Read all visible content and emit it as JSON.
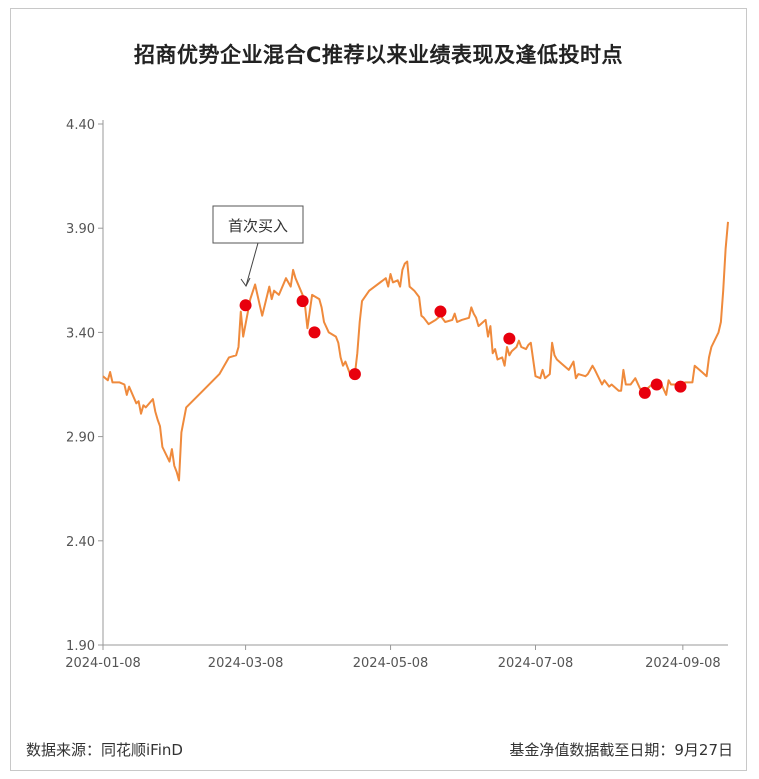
{
  "title": "招商优势企业混合C推荐以来业绩表现及逢低投时点",
  "footer": {
    "source": "数据来源：同花顺iFinD",
    "cutoff": "基金净值数据截至日期：9月27日"
  },
  "colors": {
    "line": "#ef8a3c",
    "marker": "#e8000d",
    "axis": "#999999",
    "text": "#555555"
  },
  "chart_data": {
    "type": "line",
    "title": "招商优势企业混合C推荐以来业绩表现及逢低投时点",
    "xlabel": "",
    "ylabel": "",
    "ylim": [
      1.9,
      4.4
    ],
    "y_ticks": [
      "1.90",
      "2.40",
      "2.90",
      "3.40",
      "3.90",
      "4.40"
    ],
    "x_ticks": [
      "2024-01-08",
      "2024-03-08",
      "2024-05-08",
      "2024-07-08",
      "2024-09-08"
    ],
    "x_start": "2024-01-08",
    "x_end": "2024-09-27",
    "grid": false,
    "series": [
      {
        "points": [
          [
            "2024-01-08",
            3.19
          ],
          [
            "2024-01-10",
            3.17
          ],
          [
            "2024-01-11",
            3.21
          ],
          [
            "2024-01-12",
            3.16
          ],
          [
            "2024-01-15",
            3.16
          ],
          [
            "2024-01-17",
            3.15
          ],
          [
            "2024-01-18",
            3.1
          ],
          [
            "2024-01-19",
            3.14
          ],
          [
            "2024-01-22",
            3.06
          ],
          [
            "2024-01-23",
            3.07
          ],
          [
            "2024-01-24",
            3.01
          ],
          [
            "2024-01-25",
            3.05
          ],
          [
            "2024-01-26",
            3.04
          ],
          [
            "2024-01-29",
            3.08
          ],
          [
            "2024-01-30",
            3.02
          ],
          [
            "2024-01-31",
            2.98
          ],
          [
            "2024-02-01",
            2.95
          ],
          [
            "2024-02-02",
            2.85
          ],
          [
            "2024-02-05",
            2.78
          ],
          [
            "2024-02-06",
            2.84
          ],
          [
            "2024-02-07",
            2.76
          ],
          [
            "2024-02-08",
            2.73
          ],
          [
            "2024-02-09",
            2.69
          ],
          [
            "2024-02-10",
            2.92
          ],
          [
            "2024-02-12",
            3.04
          ],
          [
            "2024-02-19",
            3.12
          ],
          [
            "2024-02-26",
            3.2
          ],
          [
            "2024-03-01",
            3.28
          ],
          [
            "2024-03-04",
            3.29
          ],
          [
            "2024-03-05",
            3.33
          ],
          [
            "2024-03-06",
            3.5
          ],
          [
            "2024-03-07",
            3.38
          ],
          [
            "2024-03-10",
            3.56
          ],
          [
            "2024-03-12",
            3.63
          ],
          [
            "2024-03-14",
            3.53
          ],
          [
            "2024-03-15",
            3.48
          ],
          [
            "2024-03-18",
            3.62
          ],
          [
            "2024-03-19",
            3.56
          ],
          [
            "2024-03-20",
            3.6
          ],
          [
            "2024-03-22",
            3.58
          ],
          [
            "2024-03-25",
            3.66
          ],
          [
            "2024-03-27",
            3.62
          ],
          [
            "2024-03-28",
            3.7
          ],
          [
            "2024-03-29",
            3.66
          ],
          [
            "2024-04-01",
            3.58
          ],
          [
            "2024-04-02",
            3.53
          ],
          [
            "2024-04-03",
            3.42
          ],
          [
            "2024-04-05",
            3.58
          ],
          [
            "2024-04-08",
            3.56
          ],
          [
            "2024-04-09",
            3.52
          ],
          [
            "2024-04-10",
            3.45
          ],
          [
            "2024-04-12",
            3.4
          ],
          [
            "2024-04-15",
            3.38
          ],
          [
            "2024-04-16",
            3.35
          ],
          [
            "2024-04-17",
            3.28
          ],
          [
            "2024-04-18",
            3.24
          ],
          [
            "2024-04-19",
            3.26
          ],
          [
            "2024-04-21",
            3.2
          ],
          [
            "2024-04-23",
            3.2
          ],
          [
            "2024-04-24",
            3.3
          ],
          [
            "2024-04-25",
            3.45
          ],
          [
            "2024-04-26",
            3.55
          ],
          [
            "2024-04-29",
            3.6
          ],
          [
            "2024-05-06",
            3.66
          ],
          [
            "2024-05-07",
            3.62
          ],
          [
            "2024-05-08",
            3.68
          ],
          [
            "2024-05-09",
            3.64
          ],
          [
            "2024-05-11",
            3.65
          ],
          [
            "2024-05-12",
            3.62
          ],
          [
            "2024-05-13",
            3.7
          ],
          [
            "2024-05-14",
            3.73
          ],
          [
            "2024-05-15",
            3.74
          ],
          [
            "2024-05-16",
            3.62
          ],
          [
            "2024-05-17",
            3.61
          ],
          [
            "2024-05-18",
            3.6
          ],
          [
            "2024-05-20",
            3.57
          ],
          [
            "2024-05-21",
            3.48
          ],
          [
            "2024-05-22",
            3.47
          ],
          [
            "2024-05-24",
            3.44
          ],
          [
            "2024-05-27",
            3.46
          ],
          [
            "2024-05-29",
            3.48
          ],
          [
            "2024-05-31",
            3.45
          ],
          [
            "2024-06-03",
            3.46
          ],
          [
            "2024-06-04",
            3.49
          ],
          [
            "2024-06-05",
            3.45
          ],
          [
            "2024-06-07",
            3.46
          ],
          [
            "2024-06-10",
            3.47
          ],
          [
            "2024-06-11",
            3.52
          ],
          [
            "2024-06-12",
            3.49
          ],
          [
            "2024-06-13",
            3.47
          ],
          [
            "2024-06-14",
            3.43
          ],
          [
            "2024-06-17",
            3.46
          ],
          [
            "2024-06-18",
            3.38
          ],
          [
            "2024-06-19",
            3.43
          ],
          [
            "2024-06-20",
            3.3
          ],
          [
            "2024-06-21",
            3.32
          ],
          [
            "2024-06-22",
            3.27
          ],
          [
            "2024-06-24",
            3.28
          ],
          [
            "2024-06-25",
            3.24
          ],
          [
            "2024-06-26",
            3.33
          ],
          [
            "2024-06-27",
            3.29
          ],
          [
            "2024-06-28",
            3.31
          ],
          [
            "2024-06-30",
            3.33
          ],
          [
            "2024-07-01",
            3.36
          ],
          [
            "2024-07-02",
            3.33
          ],
          [
            "2024-07-04",
            3.32
          ],
          [
            "2024-07-05",
            3.34
          ],
          [
            "2024-07-06",
            3.35
          ],
          [
            "2024-07-08",
            3.19
          ],
          [
            "2024-07-10",
            3.18
          ],
          [
            "2024-07-11",
            3.22
          ],
          [
            "2024-07-12",
            3.18
          ],
          [
            "2024-07-14",
            3.2
          ],
          [
            "2024-07-15",
            3.35
          ],
          [
            "2024-07-16",
            3.29
          ],
          [
            "2024-07-17",
            3.27
          ],
          [
            "2024-07-19",
            3.25
          ],
          [
            "2024-07-22",
            3.22
          ],
          [
            "2024-07-24",
            3.26
          ],
          [
            "2024-07-25",
            3.18
          ],
          [
            "2024-07-26",
            3.2
          ],
          [
            "2024-07-29",
            3.19
          ],
          [
            "2024-07-30",
            3.2
          ],
          [
            "2024-08-01",
            3.24
          ],
          [
            "2024-08-02",
            3.22
          ],
          [
            "2024-08-05",
            3.15
          ],
          [
            "2024-08-06",
            3.17
          ],
          [
            "2024-08-08",
            3.14
          ],
          [
            "2024-08-09",
            3.15
          ],
          [
            "2024-08-12",
            3.12
          ],
          [
            "2024-08-13",
            3.12
          ],
          [
            "2024-08-14",
            3.22
          ],
          [
            "2024-08-15",
            3.15
          ],
          [
            "2024-08-17",
            3.15
          ],
          [
            "2024-08-19",
            3.18
          ],
          [
            "2024-08-21",
            3.13
          ],
          [
            "2024-08-23",
            3.12
          ],
          [
            "2024-08-26",
            3.15
          ],
          [
            "2024-08-28",
            3.16
          ],
          [
            "2024-08-30",
            3.15
          ],
          [
            "2024-09-01",
            3.1
          ],
          [
            "2024-09-02",
            3.17
          ],
          [
            "2024-09-03",
            3.15
          ],
          [
            "2024-09-06",
            3.15
          ],
          [
            "2024-09-09",
            3.16
          ],
          [
            "2024-09-12",
            3.16
          ],
          [
            "2024-09-13",
            3.24
          ],
          [
            "2024-09-16",
            3.21
          ],
          [
            "2024-09-18",
            3.19
          ],
          [
            "2024-09-19",
            3.28
          ],
          [
            "2024-09-20",
            3.33
          ],
          [
            "2024-09-23",
            3.4
          ],
          [
            "2024-09-24",
            3.45
          ],
          [
            "2024-09-25",
            3.6
          ],
          [
            "2024-09-26",
            3.8
          ],
          [
            "2024-09-27",
            3.93
          ]
        ]
      }
    ],
    "buy_points": [
      [
        "2024-03-08",
        3.53
      ],
      [
        "2024-04-01",
        3.55
      ],
      [
        "2024-04-06",
        3.4
      ],
      [
        "2024-04-23",
        3.2
      ],
      [
        "2024-05-29",
        3.5
      ],
      [
        "2024-06-27",
        3.37
      ],
      [
        "2024-08-23",
        3.11
      ],
      [
        "2024-08-28",
        3.15
      ],
      [
        "2024-09-07",
        3.14
      ]
    ],
    "annotation": {
      "label": "首次买入",
      "target": [
        "2024-03-08",
        3.53
      ]
    }
  }
}
